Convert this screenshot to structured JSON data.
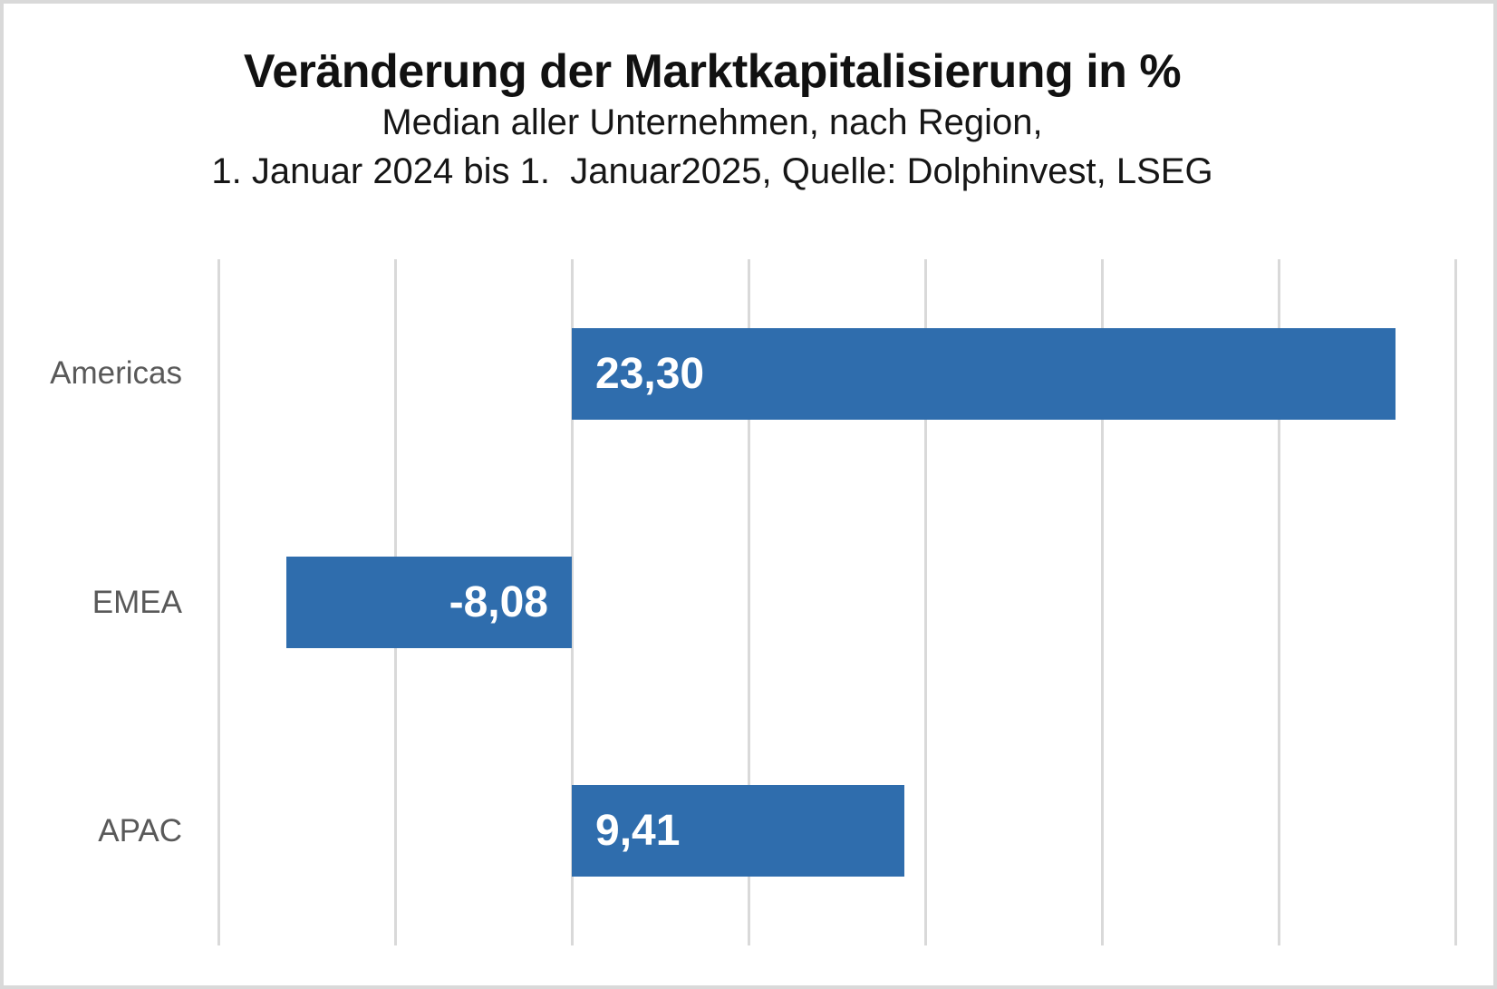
{
  "frame": {
    "background_color": "#ffffff",
    "border_color": "#d9d9d9"
  },
  "chart_data": {
    "type": "bar",
    "orientation": "horizontal",
    "title": "Veränderung der Marktkapitalisierung in %",
    "subtitle_lines": [
      "Median aller Unternehmen, nach Region,",
      "1. Januar 2024 bis 1.  Januar2025, Quelle: Dolphinvest, LSEG"
    ],
    "categories": [
      "Americas",
      "EMEA",
      "APAC"
    ],
    "values": [
      23.3,
      -8.08,
      9.41
    ],
    "value_labels": [
      "23,30",
      "-8,08",
      "9,41"
    ],
    "xlim": [
      -10,
      25
    ],
    "gridline_step": 5,
    "grid": true,
    "legend": false,
    "axis_tick_labels_visible": false,
    "colors": {
      "bar": "#2f6dad",
      "gridline": "#d9d9d9",
      "category_label": "#595959",
      "value_label": "#ffffff",
      "title": "#111111",
      "subtitle": "#161616"
    }
  }
}
